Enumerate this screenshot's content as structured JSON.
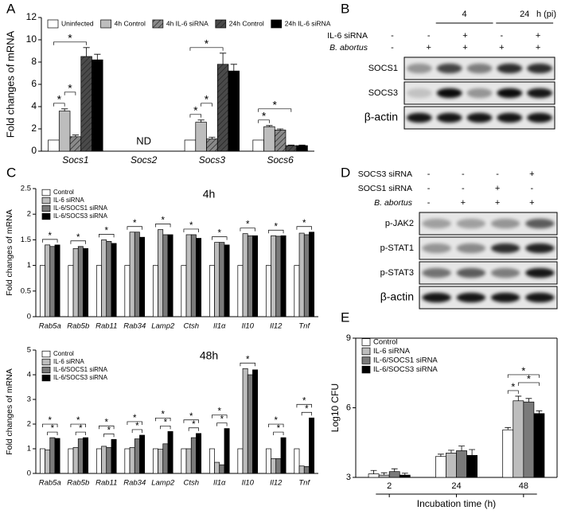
{
  "panel_labels": [
    "A",
    "B",
    "C",
    "D",
    "E"
  ],
  "chart_data": [
    {
      "type": "bar",
      "ylabel": "Fold changes of mRNA",
      "categories": [
        "Socs1",
        "Socs2",
        "Socs3",
        "Socs6"
      ],
      "series": [
        {
          "name": "Uninfected",
          "color": "#ffffff",
          "values": [
            1,
            null,
            1,
            1
          ]
        },
        {
          "name": "4h Control",
          "color": "#bdbdbd",
          "values": [
            3.6,
            null,
            2.6,
            2.2
          ],
          "errors": [
            0.2,
            null,
            0.2,
            0.1
          ]
        },
        {
          "name": "4h IL-6 siRNA",
          "color": "#8a8a8a",
          "hatch": true,
          "values": [
            1.3,
            null,
            1.1,
            1.9
          ],
          "errors": [
            0.15,
            null,
            0.15,
            0.1
          ]
        },
        {
          "name": "24h Control",
          "color": "#4a4a4a",
          "hatch": true,
          "values": [
            8.5,
            null,
            7.8,
            0.5
          ],
          "errors": [
            0.8,
            null,
            1.0,
            0.05
          ]
        },
        {
          "name": "24h IL-6 siRNA",
          "color": "#000000",
          "values": [
            8.2,
            null,
            7.2,
            0.5
          ],
          "errors": [
            0.5,
            null,
            0.6,
            0.05
          ]
        }
      ],
      "ylim": [
        0,
        12
      ],
      "yticks": [
        0,
        2,
        4,
        6,
        8,
        10,
        12
      ],
      "legend": "top",
      "annotations": [
        {
          "text": "ND",
          "category": "Socs2"
        }
      ],
      "brackets": [
        {
          "label": "*",
          "category": "Socs1",
          "between": [
            "Uninfected",
            "4h Control"
          ]
        },
        {
          "label": "*",
          "category": "Socs1",
          "between": [
            "4h Control",
            "4h IL-6 siRNA"
          ]
        },
        {
          "label": "*",
          "category": "Socs1",
          "between": [
            "Uninfected",
            "24h Control"
          ]
        },
        {
          "label": "*",
          "category": "Socs3",
          "between": [
            "Uninfected",
            "4h Control"
          ]
        },
        {
          "label": "*",
          "category": "Socs3",
          "between": [
            "4h Control",
            "4h IL-6 siRNA"
          ]
        },
        {
          "label": "*",
          "category": "Socs3",
          "between": [
            "Uninfected",
            "24h Control"
          ]
        },
        {
          "label": "*",
          "category": "Socs6",
          "between": [
            "Uninfected",
            "4h Control"
          ]
        },
        {
          "label": "*",
          "category": "Socs6",
          "between": [
            "Uninfected",
            "24h Control"
          ]
        }
      ]
    },
    {
      "type": "bar",
      "title": "4h",
      "ylabel": "Fold changes of mRNA",
      "categories": [
        "Rab5a",
        "Rab5b",
        "Rab11",
        "Rab34",
        "Lamp2",
        "Ctsh",
        "Il1α",
        "Il10",
        "Il12",
        "Tnf"
      ],
      "series": [
        {
          "name": "Control",
          "color": "#ffffff",
          "values": [
            1,
            1,
            1,
            1,
            1,
            1,
            1,
            1,
            1,
            1
          ]
        },
        {
          "name": "IL-6 siRNA",
          "color": "#bdbdbd",
          "values": [
            1.4,
            1.33,
            1.5,
            1.65,
            1.7,
            1.6,
            1.45,
            1.62,
            1.58,
            1.63
          ]
        },
        {
          "name": "IL-6/SOCS1 siRNA",
          "color": "#7a7a7a",
          "values": [
            1.37,
            1.37,
            1.47,
            1.65,
            1.6,
            1.6,
            1.45,
            1.58,
            1.57,
            1.6
          ]
        },
        {
          "name": "IL-6/SOCS3 siRNA",
          "color": "#000000",
          "values": [
            1.4,
            1.33,
            1.43,
            1.55,
            1.6,
            1.53,
            1.4,
            1.58,
            1.58,
            1.65
          ]
        }
      ],
      "ylim": [
        0,
        2.5
      ],
      "yticks": [
        0,
        0.5,
        1,
        1.5,
        2,
        2.5
      ],
      "legend": "top-left",
      "brackets": [
        {
          "label": "*",
          "category": "Rab5a",
          "between": [
            "Control",
            "IL-6/SOCS3 siRNA"
          ]
        },
        {
          "label": "*",
          "category": "Rab5b",
          "between": [
            "Control",
            "IL-6/SOCS3 siRNA"
          ]
        },
        {
          "label": "*",
          "category": "Rab11",
          "between": [
            "Control",
            "IL-6/SOCS3 siRNA"
          ]
        },
        {
          "label": "*",
          "category": "Rab34",
          "between": [
            "Control",
            "IL-6/SOCS3 siRNA"
          ]
        },
        {
          "label": "*",
          "category": "Lamp2",
          "between": [
            "Control",
            "IL-6/SOCS3 siRNA"
          ]
        },
        {
          "label": "*",
          "category": "Ctsh",
          "between": [
            "Control",
            "IL-6/SOCS3 siRNA"
          ]
        },
        {
          "label": "*",
          "category": "Il1α",
          "between": [
            "Control",
            "IL-6/SOCS3 siRNA"
          ]
        },
        {
          "label": "*",
          "category": "Il10",
          "between": [
            "Control",
            "IL-6/SOCS3 siRNA"
          ]
        },
        {
          "label": "*",
          "category": "Il12",
          "between": [
            "Control",
            "IL-6/SOCS3 siRNA"
          ]
        },
        {
          "label": "*",
          "category": "Tnf",
          "between": [
            "Control",
            "IL-6/SOCS3 siRNA"
          ]
        }
      ]
    },
    {
      "type": "bar",
      "title": "48h",
      "ylabel": "Fold changes of mRNA",
      "categories": [
        "Rab5a",
        "Rab5b",
        "Rab11",
        "Rab34",
        "Lamp2",
        "Ctsh",
        "Il1α",
        "Il10",
        "Il12",
        "Tnf"
      ],
      "series": [
        {
          "name": "Control",
          "color": "#ffffff",
          "values": [
            1,
            1,
            1,
            1,
            1,
            1,
            1,
            1,
            1,
            1
          ]
        },
        {
          "name": "IL-6 siRNA",
          "color": "#bdbdbd",
          "values": [
            0.95,
            1.05,
            1.1,
            1.05,
            0.98,
            1.0,
            0.45,
            4.25,
            0.6,
            0.3
          ]
        },
        {
          "name": "IL-6/SOCS1 siRNA",
          "color": "#7a7a7a",
          "values": [
            1.45,
            1.4,
            1.05,
            1.4,
            1.2,
            1.45,
            0.35,
            4.0,
            0.6,
            0.28
          ]
        },
        {
          "name": "IL-6/SOCS3 siRNA",
          "color": "#000000",
          "values": [
            1.42,
            1.45,
            1.38,
            1.55,
            1.7,
            1.62,
            1.82,
            4.2,
            1.45,
            2.25
          ]
        }
      ],
      "ylim": [
        0,
        5
      ],
      "yticks": [
        0,
        1,
        2,
        3,
        4,
        5
      ],
      "legend": "top-left",
      "brackets": [
        {
          "label": "*",
          "category": "Rab5a",
          "between": [
            "IL-6 siRNA",
            "IL-6/SOCS3 siRNA"
          ]
        },
        {
          "label": "*",
          "category": "Rab5a",
          "between": [
            "Control",
            "IL-6/SOCS3 siRNA"
          ]
        },
        {
          "label": "*",
          "category": "Rab5b",
          "between": [
            "IL-6 siRNA",
            "IL-6/SOCS3 siRNA"
          ]
        },
        {
          "label": "*",
          "category": "Rab5b",
          "between": [
            "Control",
            "IL-6/SOCS3 siRNA"
          ]
        },
        {
          "label": "*",
          "category": "Rab11",
          "between": [
            "IL-6 siRNA",
            "IL-6/SOCS3 siRNA"
          ]
        },
        {
          "label": "*",
          "category": "Rab11",
          "between": [
            "Control",
            "IL-6/SOCS3 siRNA"
          ]
        },
        {
          "label": "*",
          "category": "Rab34",
          "between": [
            "IL-6 siRNA",
            "IL-6/SOCS3 siRNA"
          ]
        },
        {
          "label": "*",
          "category": "Rab34",
          "between": [
            "Control",
            "IL-6/SOCS3 siRNA"
          ]
        },
        {
          "label": "*",
          "category": "Lamp2",
          "between": [
            "IL-6 siRNA",
            "IL-6/SOCS3 siRNA"
          ]
        },
        {
          "label": "*",
          "category": "Lamp2",
          "between": [
            "Control",
            "IL-6/SOCS3 siRNA"
          ]
        },
        {
          "label": "*",
          "category": "Ctsh",
          "between": [
            "IL-6 siRNA",
            "IL-6/SOCS3 siRNA"
          ]
        },
        {
          "label": "*",
          "category": "Ctsh",
          "between": [
            "Control",
            "IL-6/SOCS3 siRNA"
          ]
        },
        {
          "label": "*",
          "category": "Il1α",
          "between": [
            "IL-6 siRNA",
            "IL-6/SOCS3 siRNA"
          ]
        },
        {
          "label": "*",
          "category": "Il1α",
          "between": [
            "Control",
            "IL-6/SOCS3 siRNA"
          ]
        },
        {
          "label": "*",
          "category": "Il10",
          "between": [
            "Control",
            "IL-6/SOCS3 siRNA"
          ]
        },
        {
          "label": "*",
          "category": "Il12",
          "between": [
            "IL-6 siRNA",
            "IL-6/SOCS3 siRNA"
          ]
        },
        {
          "label": "*",
          "category": "Il12",
          "between": [
            "Control",
            "IL-6/SOCS3 siRNA"
          ]
        },
        {
          "label": "*",
          "category": "Tnf",
          "between": [
            "IL-6 siRNA",
            "IL-6/SOCS3 siRNA"
          ]
        },
        {
          "label": "*",
          "category": "Tnf",
          "between": [
            "Control",
            "IL-6/SOCS3 siRNA"
          ]
        }
      ]
    },
    {
      "type": "bar",
      "ylabel": "Log10 CFU",
      "xlabel": "Incubation time (h)",
      "categories": [
        "2",
        "24",
        "48"
      ],
      "series": [
        {
          "name": "Control",
          "color": "#ffffff",
          "values": [
            3.15,
            3.9,
            5.05
          ],
          "errors": [
            0.15,
            0.1,
            0.1
          ]
        },
        {
          "name": "IL-6 siRNA",
          "color": "#bdbdbd",
          "values": [
            3.1,
            4.05,
            6.3
          ],
          "errors": [
            0.1,
            0.12,
            0.2
          ]
        },
        {
          "name": "IL-6/SOCS1 siRNA",
          "color": "#7a7a7a",
          "values": [
            3.25,
            4.15,
            6.25
          ],
          "errors": [
            0.12,
            0.2,
            0.15
          ]
        },
        {
          "name": "IL-6/SOCS3 siRNA",
          "color": "#000000",
          "values": [
            3.1,
            3.95,
            5.75
          ],
          "errors": [
            0.08,
            0.25,
            0.12
          ]
        }
      ],
      "ylim": [
        3,
        9
      ],
      "yticks": [
        3,
        6,
        9
      ],
      "legend": "top-left",
      "brackets": [
        {
          "label": "*",
          "category": "48",
          "between": [
            "Control",
            "IL-6 siRNA"
          ]
        },
        {
          "label": "*",
          "category": "48",
          "between": [
            "IL-6 siRNA",
            "IL-6/SOCS3 siRNA"
          ]
        },
        {
          "label": "*",
          "category": "48",
          "between": [
            "Control",
            "IL-6/SOCS3 siRNA"
          ]
        }
      ]
    }
  ],
  "blot_b": {
    "timepoints": [
      "4",
      "24"
    ],
    "time_unit": "h (pi)",
    "conditions": [
      {
        "label": "IL-6 siRNA",
        "signs": [
          "-",
          "-",
          "+",
          "-",
          "+"
        ]
      },
      {
        "label": "B. abortus",
        "signs": [
          "-",
          "+",
          "+",
          "+",
          "+"
        ]
      }
    ],
    "bands": [
      "SOCS1",
      "SOCS3",
      "β-actin"
    ]
  },
  "blot_d": {
    "conditions": [
      {
        "label": "SOCS3 siRNA",
        "signs": [
          "-",
          "-",
          "-",
          "+"
        ]
      },
      {
        "label": "SOCS1 siRNA",
        "signs": [
          "-",
          "-",
          "+",
          "-"
        ]
      },
      {
        "label": "B. abortus",
        "signs": [
          "-",
          "+",
          "+",
          "+"
        ]
      }
    ],
    "bands": [
      "p-JAK2",
      "p-STAT1",
      "p-STAT3",
      "β-actin"
    ]
  }
}
